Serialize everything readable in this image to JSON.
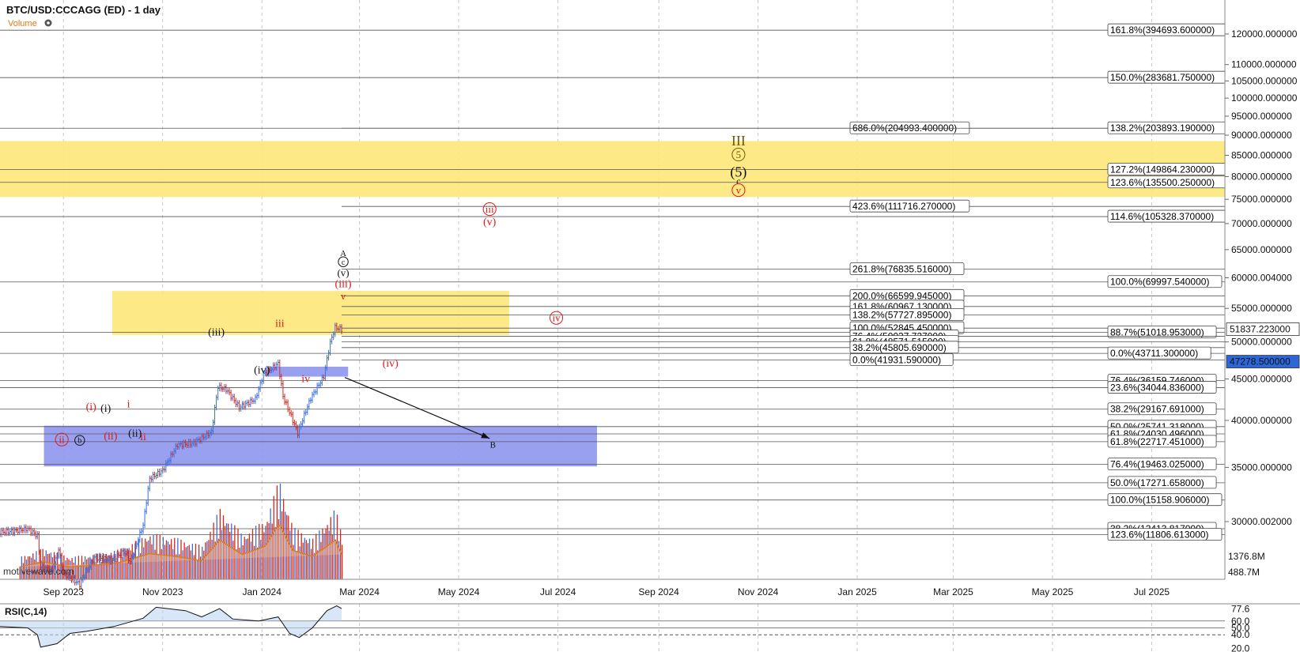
{
  "header": {
    "title": "BTC/USD:CCCAGG (ED) - 1 day",
    "volume_label": "Volume",
    "watermark": "motivewave.com"
  },
  "colors": {
    "up": "#3a6fd8",
    "down": "#d02a1e",
    "yellow_zone": "#fde879",
    "blue_zone": "#8f96ee",
    "red_label": "#e0191a",
    "gold_label": "#6e5a0c",
    "rsi_line": "#111111",
    "rsi_fill": "#bcd7f1",
    "price_tag": "#2c66d8"
  },
  "chart_data": {
    "type": "candlestick",
    "symbol": "BTC/USD:CCCAGG (ED)",
    "interval": "1 day",
    "x_axis": {
      "ticks": [
        "Sep 2023",
        "Nov 2023",
        "Jan 2024",
        "Mar 2024",
        "May 2024",
        "Jul 2024",
        "Sep 2024",
        "Nov 2024",
        "Jan 2025",
        "Mar 2025",
        "May 2025",
        "Jul 2025"
      ],
      "range": [
        "2023-07-24",
        "2025-08-15"
      ]
    },
    "y_axis": {
      "scale": "log",
      "ticks": [
        "120000.000000",
        "110000.000000",
        "105000.000000",
        "100000.000000",
        "95000.000000",
        "90000.000000",
        "85000.000000",
        "80000.000000",
        "75000.000000",
        "70000.000000",
        "65000.000000",
        "60000.004000",
        "55000.000000",
        "50000.000000",
        "45000.000000",
        "40000.000000",
        "35000.000000",
        "30000.002000"
      ]
    },
    "price_tags": {
      "last": "51837.223000",
      "other": "47278.500000",
      "vol_high": "1376.8M",
      "vol_low": "488.7M"
    },
    "price_path": [
      [
        "2023-07-24",
        29100
      ],
      [
        "2023-08-01",
        29200
      ],
      [
        "2023-08-10",
        29400
      ],
      [
        "2023-08-16",
        28800
      ],
      [
        "2023-08-18",
        26400
      ],
      [
        "2023-08-25",
        26100
      ],
      [
        "2023-08-29",
        27700
      ],
      [
        "2023-09-01",
        25900
      ],
      [
        "2023-09-11",
        25100
      ],
      [
        "2023-09-20",
        27100
      ],
      [
        "2023-09-30",
        26900
      ],
      [
        "2023-10-09",
        27600
      ],
      [
        "2023-10-12",
        26700
      ],
      [
        "2023-10-20",
        29700
      ],
      [
        "2023-10-24",
        33900
      ],
      [
        "2023-11-01",
        34700
      ],
      [
        "2023-11-10",
        37300
      ],
      [
        "2023-11-20",
        37500
      ],
      [
        "2023-12-01",
        38700
      ],
      [
        "2023-12-05",
        44000
      ],
      [
        "2023-12-10",
        43700
      ],
      [
        "2023-12-18",
        41500
      ],
      [
        "2023-12-28",
        42500
      ],
      [
        "2024-01-02",
        45600
      ],
      [
        "2024-01-11",
        47000
      ],
      [
        "2024-01-14",
        42800
      ],
      [
        "2024-01-23",
        38600
      ],
      [
        "2024-01-31",
        42600
      ],
      [
        "2024-02-08",
        45300
      ],
      [
        "2024-02-12",
        49900
      ],
      [
        "2024-02-15",
        52100
      ],
      [
        "2024-02-19",
        51800
      ]
    ],
    "volume": [
      [
        "2023-08-05",
        0.3
      ],
      [
        "2023-08-20",
        0.42
      ],
      [
        "2023-09-05",
        0.3
      ],
      [
        "2023-09-20",
        0.34
      ],
      [
        "2023-10-05",
        0.4
      ],
      [
        "2023-10-24",
        0.62
      ],
      [
        "2023-11-10",
        0.55
      ],
      [
        "2023-11-25",
        0.45
      ],
      [
        "2023-12-06",
        0.95
      ],
      [
        "2023-12-20",
        0.6
      ],
      [
        "2024-01-03",
        0.8
      ],
      [
        "2024-01-10",
        1.25
      ],
      [
        "2024-01-12",
        1.3
      ],
      [
        "2024-01-20",
        0.7
      ],
      [
        "2024-02-01",
        0.55
      ],
      [
        "2024-02-10",
        0.8
      ],
      [
        "2024-02-15",
        0.95
      ],
      [
        "2024-02-19",
        0.6
      ]
    ],
    "rsi": {
      "label": "RSI(C,14)",
      "ticks": [
        "77.6",
        "60.0",
        "50.0",
        "40.0",
        "20.0"
      ],
      "points": [
        [
          "2023-07-24",
          52
        ],
        [
          "2023-08-10",
          50
        ],
        [
          "2023-08-16",
          40
        ],
        [
          "2023-08-18",
          22
        ],
        [
          "2023-08-28",
          27
        ],
        [
          "2023-09-05",
          42
        ],
        [
          "2023-09-15",
          45
        ],
        [
          "2023-10-02",
          52
        ],
        [
          "2023-10-20",
          64
        ],
        [
          "2023-10-28",
          80
        ],
        [
          "2023-11-15",
          75
        ],
        [
          "2023-11-25",
          66
        ],
        [
          "2023-12-06",
          78
        ],
        [
          "2023-12-14",
          63
        ],
        [
          "2023-12-30",
          60
        ],
        [
          "2024-01-11",
          66
        ],
        [
          "2024-01-18",
          42
        ],
        [
          "2024-01-24",
          36
        ],
        [
          "2024-02-01",
          50
        ],
        [
          "2024-02-10",
          75
        ],
        [
          "2024-02-16",
          82
        ],
        [
          "2024-02-19",
          78
        ]
      ]
    },
    "fib_levels": [
      {
        "label": "161.8%(394693.600000)",
        "price": 121300,
        "side": "right"
      },
      {
        "label": "150.0%(283681.750000)",
        "price": 106000,
        "side": "right"
      },
      {
        "label": "686.0%(204993.400000)",
        "price": 91800,
        "side": "mid"
      },
      {
        "label": "138.2%(203893.190000)",
        "price": 91800,
        "side": "right"
      },
      {
        "label": "127.2%(149864.230000)",
        "price": 81600,
        "side": "right"
      },
      {
        "label": "123.6%(135500.250000)",
        "price": 78700,
        "side": "right"
      },
      {
        "label": "423.6%(111716.270000)",
        "price": 73500,
        "side": "mid"
      },
      {
        "label": "114.6%(105328.370000)",
        "price": 71400,
        "side": "right"
      },
      {
        "label": "261.8%(76835.516000)",
        "price": 61500,
        "side": "mid"
      },
      {
        "label": "100.0%(69997.540000)",
        "price": 59300,
        "side": "right"
      },
      {
        "label": "200.0%(66599.945000)",
        "price": 57000,
        "side": "mid"
      },
      {
        "label": "161.8%(60967.130000)",
        "price": 55300,
        "side": "mid"
      },
      {
        "label": "138.2%(57727.895000)",
        "price": 54000,
        "side": "mid"
      },
      {
        "label": "100.0%(52845.450000)",
        "price": 52000,
        "side": "mid"
      },
      {
        "label": "88.7%(51018.953000)",
        "price": 51400,
        "side": "right"
      },
      {
        "label": "76.4%(50037.727000)",
        "price": 50800,
        "side": "mid"
      },
      {
        "label": "61.8%(48571.515000)",
        "price": 50000,
        "side": "mid"
      },
      {
        "label": "38.2%(45805.690000)",
        "price": 49200,
        "side": "mid"
      },
      {
        "label": "0.0%(43711.300000)",
        "price": 48400,
        "side": "right"
      },
      {
        "label": "0.0%(41931.590000)",
        "price": 47500,
        "side": "mid"
      },
      {
        "label": "76.4%(36159.746000)",
        "price": 44800,
        "side": "right"
      },
      {
        "label": "23.6%(34044.836000)",
        "price": 43900,
        "side": "right"
      },
      {
        "label": "38.2%(29167.691000)",
        "price": 41300,
        "side": "right"
      },
      {
        "label": "50.0%(25741.318000)",
        "price": 39300,
        "side": "right"
      },
      {
        "label": "61.8%(24030.496000)",
        "price": 38500,
        "side": "right"
      },
      {
        "label": "61.8%(22717.451000)",
        "price": 37650,
        "side": "right"
      },
      {
        "label": "76.4%(19463.025000)",
        "price": 35300,
        "side": "right"
      },
      {
        "label": "50.0%(17271.658000)",
        "price": 33500,
        "side": "right"
      },
      {
        "label": "100.0%(15158.906000)",
        "price": 31900,
        "side": "right"
      },
      {
        "label": "38.2%(12413.817000)",
        "price": 29400,
        "side": "right"
      },
      {
        "label": "123.6%(11806.613000)",
        "price": 28900,
        "side": "right"
      }
    ],
    "zones": [
      {
        "name": "upper-yellow",
        "from": "2023-07-24",
        "to": "2025-08-15",
        "low": 75500,
        "high": 88500,
        "color": "yellow"
      },
      {
        "name": "mid-yellow",
        "from": "2023-10-01",
        "to": "2024-06-01",
        "low": 51000,
        "high": 57800,
        "color": "yellow"
      },
      {
        "name": "blue-support",
        "from": "2023-08-20",
        "to": "2024-07-25",
        "low": 35100,
        "high": 39400,
        "color": "blue"
      },
      {
        "name": "blue-small",
        "from": "2024-01-03",
        "to": "2024-02-23",
        "low": 45300,
        "high": 46600,
        "color": "blue"
      }
    ],
    "wave_labels": [
      {
        "text": "III",
        "date": "2024-10-20",
        "price": 87400,
        "color": "gold",
        "size": 18
      },
      {
        "text": "5",
        "date": "2024-10-20",
        "price": 84300,
        "color": "gold",
        "size": 13,
        "circle": true
      },
      {
        "text": "(5)",
        "date": "2024-10-20",
        "price": 80000,
        "color": "black",
        "size": 18
      },
      {
        "text": "c",
        "date": "2024-10-20",
        "price": 78300,
        "color": "black",
        "size": 12
      },
      {
        "text": "v",
        "date": "2024-10-20",
        "price": 76200,
        "color": "red",
        "size": 13,
        "circle": true
      },
      {
        "text": "iii",
        "date": "2024-05-20",
        "price": 72200,
        "color": "red",
        "size": 13,
        "circle": true
      },
      {
        "text": "(v)",
        "date": "2024-05-20",
        "price": 69700,
        "color": "red",
        "size": 14
      },
      {
        "text": "A",
        "date": "2024-02-20",
        "price": 63800,
        "color": "black",
        "size": 11
      },
      {
        "text": "c",
        "date": "2024-02-20",
        "price": 62300,
        "color": "black",
        "size": 10,
        "circle": true
      },
      {
        "text": "(v)",
        "date": "2024-02-20",
        "price": 60300,
        "color": "black",
        "size": 13
      },
      {
        "text": "(iii)",
        "date": "2024-02-20",
        "price": 58400,
        "color": "red",
        "size": 14
      },
      {
        "text": "v",
        "date": "2024-02-20",
        "price": 56400,
        "color": "red",
        "size": 13
      },
      {
        "text": "iv",
        "date": "2024-06-30",
        "price": 53000,
        "color": "red",
        "size": 13,
        "circle": true
      },
      {
        "text": "iii",
        "date": "2024-01-12",
        "price": 52200,
        "color": "red",
        "size": 14
      },
      {
        "text": "(iii)",
        "date": "2023-12-04",
        "price": 50900,
        "color": "black",
        "size": 14
      },
      {
        "text": "(iv)",
        "date": "2024-03-20",
        "price": 46600,
        "color": "red",
        "size": 14
      },
      {
        "text": "(iv)",
        "date": "2024-01-01",
        "price": 45700,
        "color": "black",
        "size": 14
      },
      {
        "text": "iv",
        "date": "2024-01-28",
        "price": 44600,
        "color": "red",
        "size": 14
      },
      {
        "text": "(i)",
        "date": "2023-09-18",
        "price": 41200,
        "color": "red",
        "size": 14
      },
      {
        "text": "(i)",
        "date": "2023-09-27",
        "price": 41000,
        "color": "black",
        "size": 14
      },
      {
        "text": "i",
        "date": "2023-10-11",
        "price": 41500,
        "color": "red",
        "size": 14
      },
      {
        "text": "(ii)",
        "date": "2023-10-15",
        "price": 38200,
        "color": "black",
        "size": 14
      },
      {
        "text": "ii",
        "date": "2023-10-20",
        "price": 37800,
        "color": "red",
        "size": 14
      },
      {
        "text": "(ii)",
        "date": "2023-09-30",
        "price": 37900,
        "color": "red",
        "size": 14
      },
      {
        "text": "ii",
        "date": "2023-08-31",
        "price": 37500,
        "color": "red",
        "size": 13,
        "circle": true
      },
      {
        "text": "b",
        "date": "2023-09-11",
        "price": 37500,
        "color": "black",
        "size": 10,
        "circle": true
      },
      {
        "text": "B",
        "date": "2024-05-22",
        "price": 37000,
        "color": "black",
        "size": 11
      }
    ],
    "arrow": {
      "from": [
        "2024-02-21",
        45200
      ],
      "to": [
        "2024-05-20",
        38000
      ]
    }
  }
}
